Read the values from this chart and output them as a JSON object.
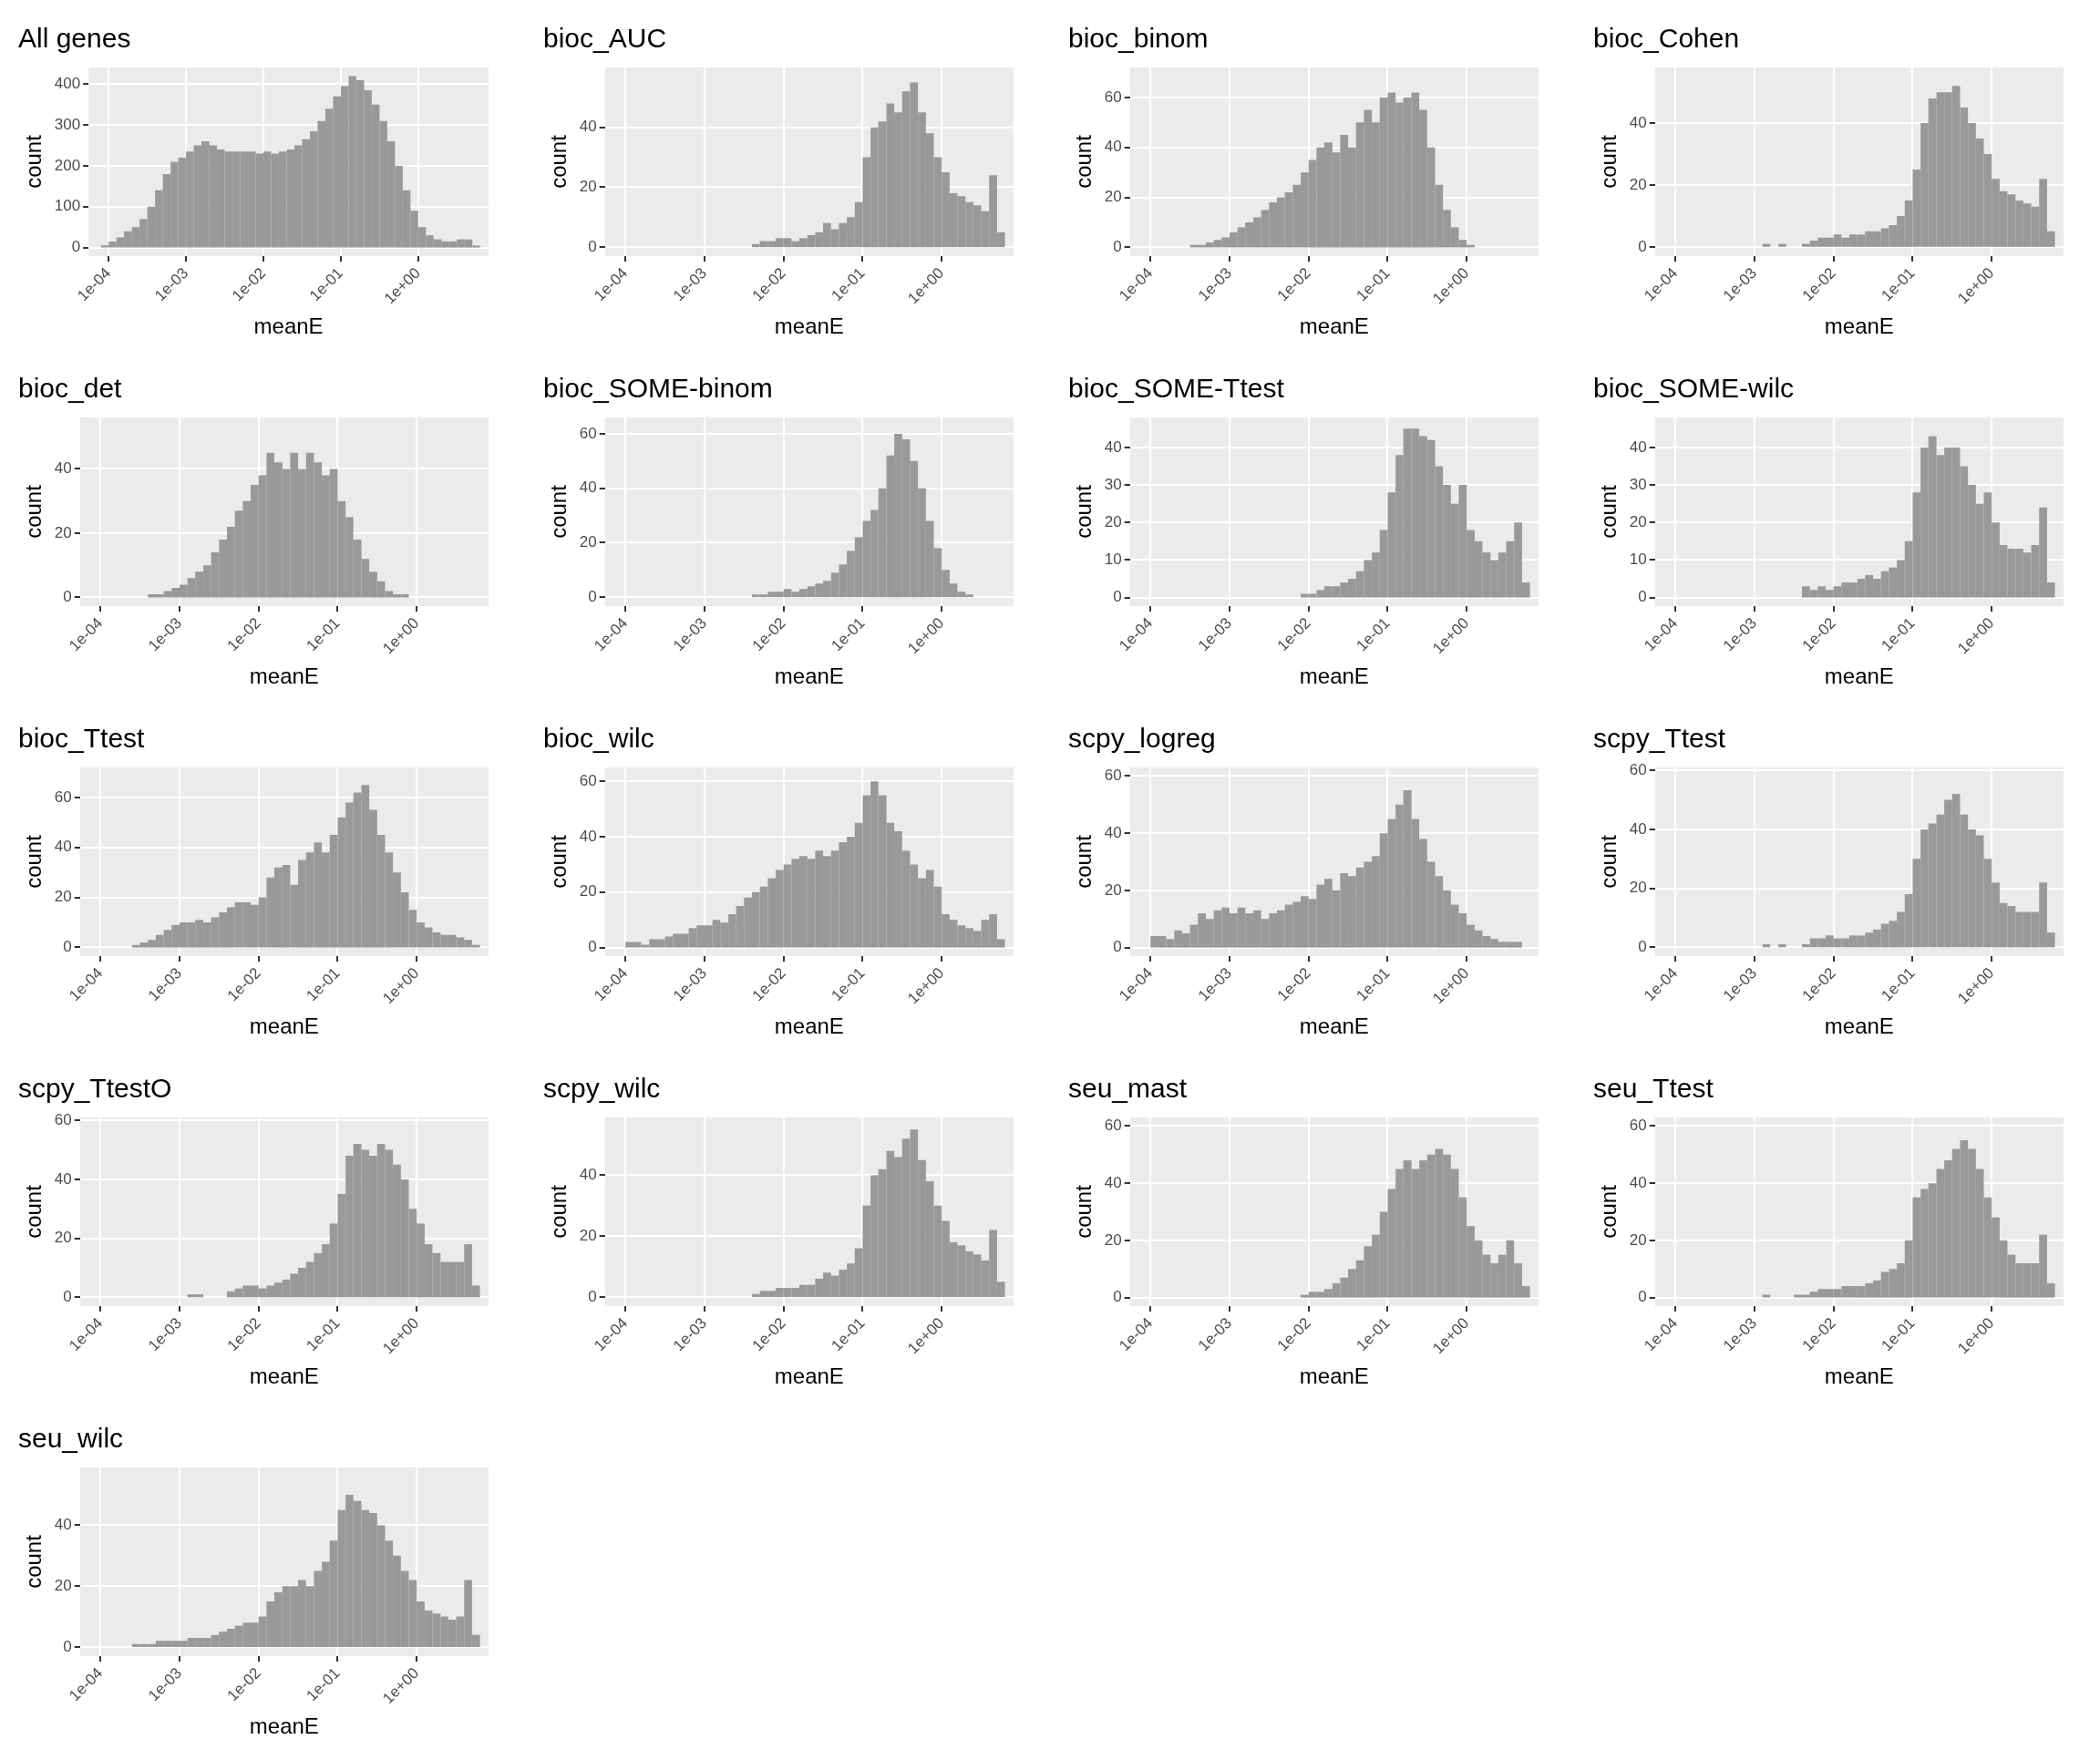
{
  "chart_data": [
    {
      "type": "histogram",
      "title": "All genes",
      "xlabel": "meanE",
      "ylabel": "count",
      "color": "#999999",
      "log": "x",
      "grid": true,
      "xlim": [
        5.5e-05,
        8.1
      ],
      "xticks": [
        {
          "value": 0.0001,
          "label": "1e-04"
        },
        {
          "value": 0.001,
          "label": "1e-03"
        },
        {
          "value": 0.01,
          "label": "1e-02"
        },
        {
          "value": 0.1,
          "label": "1e-01"
        },
        {
          "value": 1,
          "label": "1e+00"
        }
      ],
      "ylim": [
        -21,
        441
      ],
      "yticks": [
        0,
        100,
        200,
        300,
        400
      ],
      "bins": [
        6.31e-05,
        7.94e-05,
        0.0001,
        0.000126,
        0.000158,
        0.0002,
        0.000251,
        0.000316,
        0.000398,
        0.000501,
        0.000631,
        0.000794,
        0.001,
        0.00126,
        0.00158,
        0.002,
        0.00251,
        0.00316,
        0.00398,
        0.00501,
        0.00631,
        0.00794,
        0.01,
        0.0126,
        0.0158,
        0.02,
        0.0251,
        0.0316,
        0.0398,
        0.0501,
        0.0631,
        0.0794,
        0.1,
        0.126,
        0.158,
        0.2,
        0.251,
        0.316,
        0.398,
        0.501,
        0.631,
        0.794,
        1,
        1.26,
        1.58,
        2,
        2.51,
        3.16,
        3.98,
        5.01,
        6.31
      ],
      "values": [
        0,
        5,
        15,
        25,
        40,
        50,
        70,
        100,
        140,
        180,
        210,
        220,
        235,
        250,
        260,
        250,
        240,
        235,
        235,
        235,
        235,
        230,
        235,
        230,
        235,
        240,
        250,
        265,
        285,
        310,
        340,
        370,
        395,
        420,
        410,
        385,
        350,
        310,
        260,
        200,
        140,
        90,
        50,
        30,
        20,
        15,
        15,
        20,
        20,
        5
      ]
    },
    {
      "type": "histogram",
      "title": "bioc_AUC",
      "xlabel": "meanE",
      "ylabel": "count",
      "color": "#999999",
      "log": "x",
      "grid": true,
      "xlim": [
        5.5e-05,
        8.1
      ],
      "xticks": [
        {
          "value": 0.0001,
          "label": "1e-04"
        },
        {
          "value": 0.001,
          "label": "1e-03"
        },
        {
          "value": 0.01,
          "label": "1e-02"
        },
        {
          "value": 0.1,
          "label": "1e-01"
        },
        {
          "value": 1,
          "label": "1e+00"
        }
      ],
      "ylim": [
        -3,
        60
      ],
      "yticks": [
        0,
        20,
        40
      ],
      "bins": [
        6.31e-05,
        7.94e-05,
        0.0001,
        0.000126,
        0.000158,
        0.0002,
        0.000251,
        0.000316,
        0.000398,
        0.000501,
        0.000631,
        0.000794,
        0.001,
        0.00126,
        0.00158,
        0.002,
        0.00251,
        0.00316,
        0.00398,
        0.00501,
        0.00631,
        0.00794,
        0.01,
        0.0126,
        0.0158,
        0.02,
        0.0251,
        0.0316,
        0.0398,
        0.0501,
        0.0631,
        0.0794,
        0.1,
        0.126,
        0.158,
        0.2,
        0.251,
        0.316,
        0.398,
        0.501,
        0.631,
        0.794,
        1,
        1.26,
        1.58,
        2,
        2.51,
        3.16,
        3.98,
        5.01,
        6.31
      ],
      "values": [
        0,
        0,
        0,
        0,
        0,
        0,
        0,
        0,
        0,
        0,
        0,
        0,
        0,
        0,
        0,
        0,
        0,
        0,
        1,
        2,
        2,
        3,
        3,
        2,
        3,
        4,
        5,
        8,
        6,
        8,
        10,
        15,
        30,
        40,
        42,
        48,
        45,
        52,
        55,
        45,
        38,
        30,
        25,
        18,
        17,
        15,
        14,
        12,
        24,
        5
      ]
    },
    {
      "type": "histogram",
      "title": "bioc_binom",
      "xlabel": "meanE",
      "ylabel": "count",
      "color": "#999999",
      "log": "x",
      "grid": true,
      "xlim": [
        5.5e-05,
        8.1
      ],
      "xticks": [
        {
          "value": 0.0001,
          "label": "1e-04"
        },
        {
          "value": 0.001,
          "label": "1e-03"
        },
        {
          "value": 0.01,
          "label": "1e-02"
        },
        {
          "value": 0.1,
          "label": "1e-01"
        },
        {
          "value": 1,
          "label": "1e+00"
        }
      ],
      "ylim": [
        -3.5,
        72
      ],
      "yticks": [
        0,
        20,
        40,
        60
      ],
      "bins": [
        6.31e-05,
        7.94e-05,
        0.0001,
        0.000126,
        0.000158,
        0.0002,
        0.000251,
        0.000316,
        0.000398,
        0.000501,
        0.000631,
        0.000794,
        0.001,
        0.00126,
        0.00158,
        0.002,
        0.00251,
        0.00316,
        0.00398,
        0.00501,
        0.00631,
        0.00794,
        0.01,
        0.0126,
        0.0158,
        0.02,
        0.0251,
        0.0316,
        0.0398,
        0.0501,
        0.0631,
        0.0794,
        0.1,
        0.126,
        0.158,
        0.2,
        0.251,
        0.316,
        0.398,
        0.501,
        0.631,
        0.794,
        1,
        1.26,
        1.58,
        2,
        2.51,
        3.16,
        3.98,
        5.01,
        6.31
      ],
      "values": [
        0,
        0,
        0,
        0,
        0,
        0,
        0,
        1,
        1,
        2,
        3,
        4,
        6,
        8,
        10,
        12,
        15,
        18,
        20,
        22,
        25,
        30,
        35,
        40,
        42,
        38,
        45,
        40,
        50,
        55,
        50,
        60,
        62,
        58,
        60,
        62,
        55,
        40,
        25,
        15,
        8,
        3,
        1,
        0,
        0,
        0,
        0,
        0,
        0,
        0
      ]
    },
    {
      "type": "histogram",
      "title": "bioc_Cohen",
      "xlabel": "meanE",
      "ylabel": "count",
      "color": "#999999",
      "log": "x",
      "grid": true,
      "xlim": [
        5.5e-05,
        8.1
      ],
      "xticks": [
        {
          "value": 0.0001,
          "label": "1e-04"
        },
        {
          "value": 0.001,
          "label": "1e-03"
        },
        {
          "value": 0.01,
          "label": "1e-02"
        },
        {
          "value": 0.1,
          "label": "1e-01"
        },
        {
          "value": 1,
          "label": "1e+00"
        }
      ],
      "ylim": [
        -3,
        58
      ],
      "yticks": [
        0,
        20,
        40
      ],
      "bins": [
        6.31e-05,
        7.94e-05,
        0.0001,
        0.000126,
        0.000158,
        0.0002,
        0.000251,
        0.000316,
        0.000398,
        0.000501,
        0.000631,
        0.000794,
        0.001,
        0.00126,
        0.00158,
        0.002,
        0.00251,
        0.00316,
        0.00398,
        0.00501,
        0.00631,
        0.00794,
        0.01,
        0.0126,
        0.0158,
        0.02,
        0.0251,
        0.0316,
        0.0398,
        0.0501,
        0.0631,
        0.0794,
        0.1,
        0.126,
        0.158,
        0.2,
        0.251,
        0.316,
        0.398,
        0.501,
        0.631,
        0.794,
        1,
        1.26,
        1.58,
        2,
        2.51,
        3.16,
        3.98,
        5.01,
        6.31
      ],
      "values": [
        0,
        0,
        0,
        0,
        0,
        0,
        0,
        0,
        0,
        0,
        0,
        0,
        0,
        1,
        0,
        1,
        0,
        0,
        1,
        2,
        3,
        3,
        4,
        3,
        4,
        4,
        5,
        5,
        6,
        7,
        10,
        15,
        25,
        40,
        48,
        50,
        50,
        52,
        45,
        40,
        35,
        30,
        22,
        18,
        17,
        15,
        14,
        13,
        22,
        5
      ]
    },
    {
      "type": "histogram",
      "title": "bioc_det",
      "xlabel": "meanE",
      "ylabel": "count",
      "color": "#999999",
      "log": "x",
      "grid": true,
      "xlim": [
        5.5e-05,
        8.1
      ],
      "xticks": [
        {
          "value": 0.0001,
          "label": "1e-04"
        },
        {
          "value": 0.001,
          "label": "1e-03"
        },
        {
          "value": 0.01,
          "label": "1e-02"
        },
        {
          "value": 0.1,
          "label": "1e-01"
        },
        {
          "value": 1,
          "label": "1e+00"
        }
      ],
      "ylim": [
        -2.7,
        56
      ],
      "yticks": [
        0,
        20,
        40
      ],
      "bins": [
        6.31e-05,
        7.94e-05,
        0.0001,
        0.000126,
        0.000158,
        0.0002,
        0.000251,
        0.000316,
        0.000398,
        0.000501,
        0.000631,
        0.000794,
        0.001,
        0.00126,
        0.00158,
        0.002,
        0.00251,
        0.00316,
        0.00398,
        0.00501,
        0.00631,
        0.00794,
        0.01,
        0.0126,
        0.0158,
        0.02,
        0.0251,
        0.0316,
        0.0398,
        0.0501,
        0.0631,
        0.0794,
        0.1,
        0.126,
        0.158,
        0.2,
        0.251,
        0.316,
        0.398,
        0.501,
        0.631,
        0.794,
        1,
        1.26,
        1.58,
        2,
        2.51,
        3.16,
        3.98,
        5.01,
        6.31
      ],
      "values": [
        0,
        0,
        0,
        0,
        0,
        0,
        0,
        0,
        1,
        1,
        2,
        3,
        4,
        6,
        8,
        10,
        14,
        18,
        22,
        27,
        30,
        35,
        38,
        45,
        42,
        40,
        45,
        40,
        45,
        42,
        38,
        40,
        30,
        25,
        18,
        12,
        8,
        5,
        2,
        1,
        1,
        0,
        0,
        0,
        0,
        0,
        0,
        0,
        0,
        0
      ]
    },
    {
      "type": "histogram",
      "title": "bioc_SOME-binom",
      "xlabel": "meanE",
      "ylabel": "count",
      "color": "#999999",
      "log": "x",
      "grid": true,
      "xlim": [
        5.5e-05,
        8.1
      ],
      "xticks": [
        {
          "value": 0.0001,
          "label": "1e-04"
        },
        {
          "value": 0.001,
          "label": "1e-03"
        },
        {
          "value": 0.01,
          "label": "1e-02"
        },
        {
          "value": 0.1,
          "label": "1e-01"
        },
        {
          "value": 1,
          "label": "1e+00"
        }
      ],
      "ylim": [
        -3.3,
        66
      ],
      "yticks": [
        0,
        20,
        40,
        60
      ],
      "bins": [
        6.31e-05,
        7.94e-05,
        0.0001,
        0.000126,
        0.000158,
        0.0002,
        0.000251,
        0.000316,
        0.000398,
        0.000501,
        0.000631,
        0.000794,
        0.001,
        0.00126,
        0.00158,
        0.002,
        0.00251,
        0.00316,
        0.00398,
        0.00501,
        0.00631,
        0.00794,
        0.01,
        0.0126,
        0.0158,
        0.02,
        0.0251,
        0.0316,
        0.0398,
        0.0501,
        0.0631,
        0.0794,
        0.1,
        0.126,
        0.158,
        0.2,
        0.251,
        0.316,
        0.398,
        0.501,
        0.631,
        0.794,
        1,
        1.26,
        1.58,
        2,
        2.51,
        3.16,
        3.98,
        5.01,
        6.31
      ],
      "values": [
        0,
        0,
        0,
        0,
        0,
        0,
        0,
        0,
        0,
        0,
        0,
        0,
        0,
        0,
        0,
        0,
        0,
        0,
        1,
        1,
        2,
        2,
        3,
        2,
        3,
        4,
        5,
        6,
        9,
        12,
        17,
        22,
        28,
        32,
        40,
        52,
        60,
        58,
        50,
        40,
        28,
        18,
        10,
        5,
        2,
        1,
        0,
        0,
        0,
        0
      ]
    },
    {
      "type": "histogram",
      "title": "bioc_SOME-Ttest",
      "xlabel": "meanE",
      "ylabel": "count",
      "color": "#999999",
      "log": "x",
      "grid": true,
      "xlim": [
        5.5e-05,
        8.1
      ],
      "xticks": [
        {
          "value": 0.0001,
          "label": "1e-04"
        },
        {
          "value": 0.001,
          "label": "1e-03"
        },
        {
          "value": 0.01,
          "label": "1e-02"
        },
        {
          "value": 0.1,
          "label": "1e-01"
        },
        {
          "value": 1,
          "label": "1e+00"
        }
      ],
      "ylim": [
        -2.3,
        48
      ],
      "yticks": [
        0,
        10,
        20,
        30,
        40
      ],
      "bins": [
        6.31e-05,
        7.94e-05,
        0.0001,
        0.000126,
        0.000158,
        0.0002,
        0.000251,
        0.000316,
        0.000398,
        0.000501,
        0.000631,
        0.000794,
        0.001,
        0.00126,
        0.00158,
        0.002,
        0.00251,
        0.00316,
        0.00398,
        0.00501,
        0.00631,
        0.00794,
        0.01,
        0.0126,
        0.0158,
        0.02,
        0.0251,
        0.0316,
        0.0398,
        0.0501,
        0.0631,
        0.0794,
        0.1,
        0.126,
        0.158,
        0.2,
        0.251,
        0.316,
        0.398,
        0.501,
        0.631,
        0.794,
        1,
        1.26,
        1.58,
        2,
        2.51,
        3.16,
        3.98,
        5.01,
        6.31
      ],
      "values": [
        0,
        0,
        0,
        0,
        0,
        0,
        0,
        0,
        0,
        0,
        0,
        0,
        0,
        0,
        0,
        0,
        0,
        0,
        0,
        0,
        0,
        1,
        1,
        2,
        3,
        3,
        4,
        5,
        7,
        10,
        12,
        18,
        28,
        38,
        45,
        45,
        43,
        42,
        35,
        30,
        25,
        30,
        18,
        15,
        12,
        10,
        12,
        15,
        20,
        4
      ]
    },
    {
      "type": "histogram",
      "title": "bioc_SOME-wilc",
      "xlabel": "meanE",
      "ylabel": "count",
      "color": "#999999",
      "log": "x",
      "grid": true,
      "xlim": [
        5.5e-05,
        8.1
      ],
      "xticks": [
        {
          "value": 0.0001,
          "label": "1e-04"
        },
        {
          "value": 0.001,
          "label": "1e-03"
        },
        {
          "value": 0.01,
          "label": "1e-02"
        },
        {
          "value": 0.1,
          "label": "1e-01"
        },
        {
          "value": 1,
          "label": "1e+00"
        }
      ],
      "ylim": [
        -2.3,
        48
      ],
      "yticks": [
        0,
        10,
        20,
        30,
        40
      ],
      "bins": [
        6.31e-05,
        7.94e-05,
        0.0001,
        0.000126,
        0.000158,
        0.0002,
        0.000251,
        0.000316,
        0.000398,
        0.000501,
        0.000631,
        0.000794,
        0.001,
        0.00126,
        0.00158,
        0.002,
        0.00251,
        0.00316,
        0.00398,
        0.00501,
        0.00631,
        0.00794,
        0.01,
        0.0126,
        0.0158,
        0.02,
        0.0251,
        0.0316,
        0.0398,
        0.0501,
        0.0631,
        0.0794,
        0.1,
        0.126,
        0.158,
        0.2,
        0.251,
        0.316,
        0.398,
        0.501,
        0.631,
        0.794,
        1,
        1.26,
        1.58,
        2,
        2.51,
        3.16,
        3.98,
        5.01,
        6.31
      ],
      "values": [
        0,
        0,
        0,
        0,
        0,
        0,
        0,
        0,
        0,
        0,
        0,
        0,
        0,
        0,
        0,
        0,
        0,
        0,
        3,
        2,
        3,
        2,
        3,
        4,
        4,
        5,
        6,
        5,
        7,
        8,
        10,
        15,
        28,
        40,
        43,
        38,
        40,
        40,
        35,
        30,
        25,
        28,
        20,
        14,
        13,
        13,
        12,
        14,
        24,
        4
      ]
    },
    {
      "type": "histogram",
      "title": "bioc_Ttest",
      "xlabel": "meanE",
      "ylabel": "count",
      "color": "#999999",
      "log": "x",
      "grid": true,
      "xlim": [
        5.5e-05,
        8.1
      ],
      "xticks": [
        {
          "value": 0.0001,
          "label": "1e-04"
        },
        {
          "value": 0.001,
          "label": "1e-03"
        },
        {
          "value": 0.01,
          "label": "1e-02"
        },
        {
          "value": 0.1,
          "label": "1e-01"
        },
        {
          "value": 1,
          "label": "1e+00"
        }
      ],
      "ylim": [
        -3.5,
        72
      ],
      "yticks": [
        0,
        20,
        40,
        60
      ],
      "bins": [
        6.31e-05,
        7.94e-05,
        0.0001,
        0.000126,
        0.000158,
        0.0002,
        0.000251,
        0.000316,
        0.000398,
        0.000501,
        0.000631,
        0.000794,
        0.001,
        0.00126,
        0.00158,
        0.002,
        0.00251,
        0.00316,
        0.00398,
        0.00501,
        0.00631,
        0.00794,
        0.01,
        0.0126,
        0.0158,
        0.02,
        0.0251,
        0.0316,
        0.0398,
        0.0501,
        0.0631,
        0.0794,
        0.1,
        0.126,
        0.158,
        0.2,
        0.251,
        0.316,
        0.398,
        0.501,
        0.631,
        0.794,
        1,
        1.26,
        1.58,
        2,
        2.51,
        3.16,
        3.98,
        5.01,
        6.31
      ],
      "values": [
        0,
        0,
        0,
        0,
        0,
        0,
        1,
        2,
        3,
        5,
        7,
        9,
        10,
        10,
        11,
        10,
        12,
        14,
        16,
        18,
        18,
        17,
        20,
        28,
        32,
        33,
        25,
        35,
        38,
        42,
        38,
        45,
        52,
        58,
        62,
        65,
        55,
        45,
        38,
        30,
        22,
        15,
        10,
        8,
        6,
        5,
        5,
        4,
        3,
        1
      ]
    },
    {
      "type": "histogram",
      "title": "bioc_wilc",
      "xlabel": "meanE",
      "ylabel": "count",
      "color": "#999999",
      "log": "x",
      "grid": true,
      "xlim": [
        5.5e-05,
        8.1
      ],
      "xticks": [
        {
          "value": 0.0001,
          "label": "1e-04"
        },
        {
          "value": 0.001,
          "label": "1e-03"
        },
        {
          "value": 0.01,
          "label": "1e-02"
        },
        {
          "value": 0.1,
          "label": "1e-01"
        },
        {
          "value": 1,
          "label": "1e+00"
        }
      ],
      "ylim": [
        -3.1,
        65
      ],
      "yticks": [
        0,
        20,
        40,
        60
      ],
      "bins": [
        6.31e-05,
        7.94e-05,
        0.0001,
        0.000126,
        0.000158,
        0.0002,
        0.000251,
        0.000316,
        0.000398,
        0.000501,
        0.000631,
        0.000794,
        0.001,
        0.00126,
        0.00158,
        0.002,
        0.00251,
        0.00316,
        0.00398,
        0.00501,
        0.00631,
        0.00794,
        0.01,
        0.0126,
        0.0158,
        0.02,
        0.0251,
        0.0316,
        0.0398,
        0.0501,
        0.0631,
        0.0794,
        0.1,
        0.126,
        0.158,
        0.2,
        0.251,
        0.316,
        0.398,
        0.501,
        0.631,
        0.794,
        1,
        1.26,
        1.58,
        2,
        2.51,
        3.16,
        3.98,
        5.01,
        6.31
      ],
      "values": [
        0,
        0,
        2,
        2,
        1,
        3,
        3,
        4,
        5,
        5,
        7,
        8,
        8,
        10,
        9,
        12,
        15,
        18,
        20,
        22,
        25,
        28,
        30,
        32,
        33,
        32,
        35,
        33,
        35,
        38,
        40,
        45,
        55,
        60,
        55,
        45,
        42,
        35,
        30,
        25,
        28,
        22,
        12,
        10,
        8,
        7,
        6,
        10,
        12,
        3
      ]
    },
    {
      "type": "histogram",
      "title": "scpy_logreg",
      "xlabel": "meanE",
      "ylabel": "count",
      "color": "#999999",
      "log": "x",
      "grid": true,
      "xlim": [
        5.5e-05,
        8.1
      ],
      "xticks": [
        {
          "value": 0.0001,
          "label": "1e-04"
        },
        {
          "value": 0.001,
          "label": "1e-03"
        },
        {
          "value": 0.01,
          "label": "1e-02"
        },
        {
          "value": 0.1,
          "label": "1e-01"
        },
        {
          "value": 1,
          "label": "1e+00"
        }
      ],
      "ylim": [
        -3,
        63
      ],
      "yticks": [
        0,
        20,
        40,
        60
      ],
      "bins": [
        6.31e-05,
        7.94e-05,
        0.0001,
        0.000126,
        0.000158,
        0.0002,
        0.000251,
        0.000316,
        0.000398,
        0.000501,
        0.000631,
        0.000794,
        0.001,
        0.00126,
        0.00158,
        0.002,
        0.00251,
        0.00316,
        0.00398,
        0.00501,
        0.00631,
        0.00794,
        0.01,
        0.0126,
        0.0158,
        0.02,
        0.0251,
        0.0316,
        0.0398,
        0.0501,
        0.0631,
        0.0794,
        0.1,
        0.126,
        0.158,
        0.2,
        0.251,
        0.316,
        0.398,
        0.501,
        0.631,
        0.794,
        1,
        1.26,
        1.58,
        2,
        2.51,
        3.16,
        3.98,
        5.01,
        6.31
      ],
      "values": [
        0,
        0,
        4,
        4,
        3,
        6,
        5,
        8,
        12,
        10,
        13,
        14,
        12,
        14,
        12,
        13,
        10,
        12,
        13,
        15,
        16,
        18,
        17,
        22,
        24,
        20,
        26,
        25,
        28,
        30,
        32,
        40,
        45,
        50,
        55,
        45,
        38,
        30,
        25,
        20,
        15,
        12,
        8,
        6,
        4,
        3,
        2,
        2,
        2,
        0
      ]
    },
    {
      "type": "histogram",
      "title": "scpy_Ttest",
      "xlabel": "meanE",
      "ylabel": "count",
      "color": "#999999",
      "log": "x",
      "grid": true,
      "xlim": [
        5.5e-05,
        8.1
      ],
      "xticks": [
        {
          "value": 0.0001,
          "label": "1e-04"
        },
        {
          "value": 0.001,
          "label": "1e-03"
        },
        {
          "value": 0.01,
          "label": "1e-02"
        },
        {
          "value": 0.1,
          "label": "1e-01"
        },
        {
          "value": 1,
          "label": "1e+00"
        }
      ],
      "ylim": [
        -3,
        61
      ],
      "yticks": [
        0,
        20,
        40,
        60
      ],
      "bins": [
        6.31e-05,
        7.94e-05,
        0.0001,
        0.000126,
        0.000158,
        0.0002,
        0.000251,
        0.000316,
        0.000398,
        0.000501,
        0.000631,
        0.000794,
        0.001,
        0.00126,
        0.00158,
        0.002,
        0.00251,
        0.00316,
        0.00398,
        0.00501,
        0.00631,
        0.00794,
        0.01,
        0.0126,
        0.0158,
        0.02,
        0.0251,
        0.0316,
        0.0398,
        0.0501,
        0.0631,
        0.0794,
        0.1,
        0.126,
        0.158,
        0.2,
        0.251,
        0.316,
        0.398,
        0.501,
        0.631,
        0.794,
        1,
        1.26,
        1.58,
        2,
        2.51,
        3.16,
        3.98,
        5.01,
        6.31
      ],
      "values": [
        0,
        0,
        0,
        0,
        0,
        0,
        0,
        0,
        0,
        0,
        0,
        0,
        0,
        1,
        0,
        1,
        0,
        0,
        1,
        3,
        3,
        4,
        3,
        3,
        4,
        4,
        5,
        6,
        8,
        9,
        12,
        18,
        30,
        40,
        42,
        45,
        50,
        52,
        45,
        40,
        38,
        30,
        22,
        15,
        14,
        12,
        12,
        12,
        22,
        5
      ]
    },
    {
      "type": "histogram",
      "title": "scpy_TtestO",
      "xlabel": "meanE",
      "ylabel": "count",
      "color": "#999999",
      "log": "x",
      "grid": true,
      "xlim": [
        5.5e-05,
        8.1
      ],
      "xticks": [
        {
          "value": 0.0001,
          "label": "1e-04"
        },
        {
          "value": 0.001,
          "label": "1e-03"
        },
        {
          "value": 0.01,
          "label": "1e-02"
        },
        {
          "value": 0.1,
          "label": "1e-01"
        },
        {
          "value": 1,
          "label": "1e+00"
        }
      ],
      "ylim": [
        -3,
        61
      ],
      "yticks": [
        0,
        20,
        40,
        60
      ],
      "bins": [
        6.31e-05,
        7.94e-05,
        0.0001,
        0.000126,
        0.000158,
        0.0002,
        0.000251,
        0.000316,
        0.000398,
        0.000501,
        0.000631,
        0.000794,
        0.001,
        0.00126,
        0.00158,
        0.002,
        0.00251,
        0.00316,
        0.00398,
        0.00501,
        0.00631,
        0.00794,
        0.01,
        0.0126,
        0.0158,
        0.02,
        0.0251,
        0.0316,
        0.0398,
        0.0501,
        0.0631,
        0.0794,
        0.1,
        0.126,
        0.158,
        0.2,
        0.251,
        0.316,
        0.398,
        0.501,
        0.631,
        0.794,
        1,
        1.26,
        1.58,
        2,
        2.51,
        3.16,
        3.98,
        5.01,
        6.31
      ],
      "values": [
        0,
        0,
        0,
        0,
        0,
        0,
        0,
        0,
        0,
        0,
        0,
        0,
        0,
        1,
        1,
        0,
        0,
        0,
        2,
        3,
        4,
        4,
        3,
        4,
        5,
        6,
        8,
        10,
        12,
        15,
        18,
        25,
        35,
        48,
        52,
        50,
        48,
        52,
        50,
        45,
        40,
        30,
        25,
        18,
        15,
        12,
        12,
        12,
        18,
        4
      ]
    },
    {
      "type": "histogram",
      "title": "scpy_wilc",
      "xlabel": "meanE",
      "ylabel": "count",
      "color": "#999999",
      "log": "x",
      "grid": true,
      "xlim": [
        5.5e-05,
        8.1
      ],
      "xticks": [
        {
          "value": 0.0001,
          "label": "1e-04"
        },
        {
          "value": 0.001,
          "label": "1e-03"
        },
        {
          "value": 0.01,
          "label": "1e-02"
        },
        {
          "value": 0.1,
          "label": "1e-01"
        },
        {
          "value": 1,
          "label": "1e+00"
        }
      ],
      "ylim": [
        -3,
        59
      ],
      "yticks": [
        0,
        20,
        40
      ],
      "bins": [
        6.31e-05,
        7.94e-05,
        0.0001,
        0.000126,
        0.000158,
        0.0002,
        0.000251,
        0.000316,
        0.000398,
        0.000501,
        0.000631,
        0.000794,
        0.001,
        0.00126,
        0.00158,
        0.002,
        0.00251,
        0.00316,
        0.00398,
        0.00501,
        0.00631,
        0.00794,
        0.01,
        0.0126,
        0.0158,
        0.02,
        0.0251,
        0.0316,
        0.0398,
        0.0501,
        0.0631,
        0.0794,
        0.1,
        0.126,
        0.158,
        0.2,
        0.251,
        0.316,
        0.398,
        0.501,
        0.631,
        0.794,
        1,
        1.26,
        1.58,
        2,
        2.51,
        3.16,
        3.98,
        5.01,
        6.31
      ],
      "values": [
        0,
        0,
        0,
        0,
        0,
        0,
        0,
        0,
        0,
        0,
        0,
        0,
        0,
        0,
        0,
        0,
        0,
        0,
        1,
        2,
        2,
        3,
        3,
        3,
        4,
        4,
        6,
        8,
        7,
        9,
        11,
        16,
        30,
        40,
        42,
        48,
        46,
        52,
        55,
        45,
        38,
        30,
        25,
        18,
        17,
        15,
        14,
        12,
        22,
        5
      ]
    },
    {
      "type": "histogram",
      "title": "seu_mast",
      "xlabel": "meanE",
      "ylabel": "count",
      "color": "#999999",
      "log": "x",
      "grid": true,
      "xlim": [
        5.5e-05,
        8.1
      ],
      "xticks": [
        {
          "value": 0.0001,
          "label": "1e-04"
        },
        {
          "value": 0.001,
          "label": "1e-03"
        },
        {
          "value": 0.01,
          "label": "1e-02"
        },
        {
          "value": 0.1,
          "label": "1e-01"
        },
        {
          "value": 1,
          "label": "1e+00"
        }
      ],
      "ylim": [
        -3,
        63
      ],
      "yticks": [
        0,
        20,
        40,
        60
      ],
      "bins": [
        6.31e-05,
        7.94e-05,
        0.0001,
        0.000126,
        0.000158,
        0.0002,
        0.000251,
        0.000316,
        0.000398,
        0.000501,
        0.000631,
        0.000794,
        0.001,
        0.00126,
        0.00158,
        0.002,
        0.00251,
        0.00316,
        0.00398,
        0.00501,
        0.00631,
        0.00794,
        0.01,
        0.0126,
        0.0158,
        0.02,
        0.0251,
        0.0316,
        0.0398,
        0.0501,
        0.0631,
        0.0794,
        0.1,
        0.126,
        0.158,
        0.2,
        0.251,
        0.316,
        0.398,
        0.501,
        0.631,
        0.794,
        1,
        1.26,
        1.58,
        2,
        2.51,
        3.16,
        3.98,
        5.01,
        6.31
      ],
      "values": [
        0,
        0,
        0,
        0,
        0,
        0,
        0,
        0,
        0,
        0,
        0,
        0,
        0,
        0,
        0,
        0,
        0,
        0,
        0,
        0,
        0,
        1,
        2,
        2,
        3,
        5,
        7,
        10,
        13,
        18,
        22,
        30,
        38,
        45,
        48,
        45,
        48,
        50,
        52,
        50,
        45,
        35,
        25,
        20,
        15,
        12,
        15,
        20,
        12,
        4
      ]
    },
    {
      "type": "histogram",
      "title": "seu_Ttest",
      "xlabel": "meanE",
      "ylabel": "count",
      "color": "#999999",
      "log": "x",
      "grid": true,
      "xlim": [
        5.5e-05,
        8.1
      ],
      "xticks": [
        {
          "value": 0.0001,
          "label": "1e-04"
        },
        {
          "value": 0.001,
          "label": "1e-03"
        },
        {
          "value": 0.01,
          "label": "1e-02"
        },
        {
          "value": 0.1,
          "label": "1e-01"
        },
        {
          "value": 1,
          "label": "1e+00"
        }
      ],
      "ylim": [
        -3,
        63
      ],
      "yticks": [
        0,
        20,
        40,
        60
      ],
      "bins": [
        6.31e-05,
        7.94e-05,
        0.0001,
        0.000126,
        0.000158,
        0.0002,
        0.000251,
        0.000316,
        0.000398,
        0.000501,
        0.000631,
        0.000794,
        0.001,
        0.00126,
        0.00158,
        0.002,
        0.00251,
        0.00316,
        0.00398,
        0.00501,
        0.00631,
        0.00794,
        0.01,
        0.0126,
        0.0158,
        0.02,
        0.0251,
        0.0316,
        0.0398,
        0.0501,
        0.0631,
        0.0794,
        0.1,
        0.126,
        0.158,
        0.2,
        0.251,
        0.316,
        0.398,
        0.501,
        0.631,
        0.794,
        1,
        1.26,
        1.58,
        2,
        2.51,
        3.16,
        3.98,
        5.01,
        6.31
      ],
      "values": [
        0,
        0,
        0,
        0,
        0,
        0,
        0,
        0,
        0,
        0,
        0,
        0,
        0,
        1,
        0,
        0,
        0,
        1,
        1,
        2,
        3,
        3,
        3,
        4,
        4,
        4,
        5,
        6,
        9,
        10,
        12,
        20,
        35,
        38,
        40,
        45,
        48,
        52,
        55,
        52,
        45,
        35,
        28,
        20,
        15,
        12,
        12,
        12,
        22,
        5
      ]
    },
    {
      "type": "histogram",
      "title": "seu_wilc",
      "xlabel": "meanE",
      "ylabel": "count",
      "color": "#999999",
      "log": "x",
      "grid": true,
      "xlim": [
        5.5e-05,
        8.1
      ],
      "xticks": [
        {
          "value": 0.0001,
          "label": "1e-04"
        },
        {
          "value": 0.001,
          "label": "1e-03"
        },
        {
          "value": 0.01,
          "label": "1e-02"
        },
        {
          "value": 0.1,
          "label": "1e-01"
        },
        {
          "value": 1,
          "label": "1e+00"
        }
      ],
      "ylim": [
        -3,
        59
      ],
      "yticks": [
        0,
        20,
        40
      ],
      "bins": [
        6.31e-05,
        7.94e-05,
        0.0001,
        0.000126,
        0.000158,
        0.0002,
        0.000251,
        0.000316,
        0.000398,
        0.000501,
        0.000631,
        0.000794,
        0.001,
        0.00126,
        0.00158,
        0.002,
        0.00251,
        0.00316,
        0.00398,
        0.00501,
        0.00631,
        0.00794,
        0.01,
        0.0126,
        0.0158,
        0.02,
        0.0251,
        0.0316,
        0.0398,
        0.0501,
        0.0631,
        0.0794,
        0.1,
        0.126,
        0.158,
        0.2,
        0.251,
        0.316,
        0.398,
        0.501,
        0.631,
        0.794,
        1,
        1.26,
        1.58,
        2,
        2.51,
        3.16,
        3.98,
        5.01,
        6.31
      ],
      "values": [
        0,
        0,
        0,
        0,
        0,
        0,
        1,
        1,
        1,
        2,
        2,
        2,
        2,
        3,
        3,
        3,
        4,
        5,
        6,
        7,
        8,
        8,
        10,
        15,
        18,
        20,
        20,
        22,
        20,
        25,
        28,
        35,
        45,
        50,
        48,
        45,
        44,
        40,
        35,
        30,
        25,
        22,
        15,
        12,
        11,
        10,
        9,
        10,
        22,
        4
      ]
    }
  ]
}
